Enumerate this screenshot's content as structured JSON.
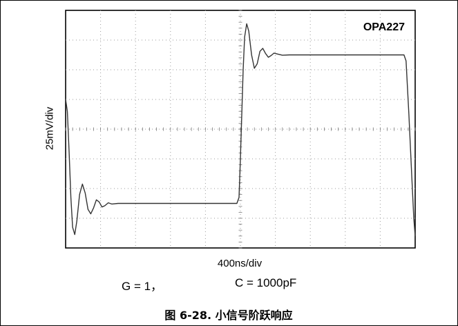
{
  "chart_data": {
    "type": "line",
    "title": "OPA227",
    "xlabel": "400ns/div",
    "ylabel": "25mV/div",
    "grid": true,
    "x_divisions": 10,
    "y_divisions": 8,
    "xlim": [
      0,
      10
    ],
    "ylim": [
      -4,
      4
    ],
    "series": [
      {
        "points": [
          [
            0.0,
            1.0
          ],
          [
            0.05,
            0.6
          ],
          [
            0.1,
            -0.8
          ],
          [
            0.15,
            -2.3
          ],
          [
            0.2,
            -3.3
          ],
          [
            0.26,
            -3.55
          ],
          [
            0.32,
            -3.1
          ],
          [
            0.4,
            -2.2
          ],
          [
            0.48,
            -1.85
          ],
          [
            0.56,
            -2.15
          ],
          [
            0.64,
            -2.7
          ],
          [
            0.72,
            -2.85
          ],
          [
            0.8,
            -2.65
          ],
          [
            0.88,
            -2.38
          ],
          [
            0.96,
            -2.45
          ],
          [
            1.04,
            -2.62
          ],
          [
            1.12,
            -2.58
          ],
          [
            1.22,
            -2.48
          ],
          [
            1.32,
            -2.52
          ],
          [
            1.5,
            -2.5
          ],
          [
            4.9,
            -2.5
          ],
          [
            4.96,
            -2.3
          ],
          [
            5.0,
            -1.0
          ],
          [
            5.04,
            0.5
          ],
          [
            5.08,
            2.0
          ],
          [
            5.12,
            3.1
          ],
          [
            5.18,
            3.55
          ],
          [
            5.24,
            3.3
          ],
          [
            5.32,
            2.5
          ],
          [
            5.4,
            2.05
          ],
          [
            5.48,
            2.2
          ],
          [
            5.56,
            2.62
          ],
          [
            5.64,
            2.72
          ],
          [
            5.72,
            2.55
          ],
          [
            5.8,
            2.42
          ],
          [
            5.88,
            2.48
          ],
          [
            5.96,
            2.56
          ],
          [
            6.06,
            2.53
          ],
          [
            6.2,
            2.49
          ],
          [
            6.4,
            2.5
          ],
          [
            9.68,
            2.5
          ],
          [
            9.74,
            2.3
          ],
          [
            9.82,
            0.5
          ],
          [
            9.9,
            -1.5
          ],
          [
            9.96,
            -3.0
          ],
          [
            10.0,
            -3.6
          ]
        ]
      }
    ]
  },
  "conditions": {
    "gain": "G = 1，",
    "capacitance": "C = 1000pF"
  },
  "caption": "图 6-28. 小信号阶跃响应",
  "colors": {
    "trace": "#333333",
    "grid_dot": "#9a9a9a",
    "axis": "#000000"
  }
}
